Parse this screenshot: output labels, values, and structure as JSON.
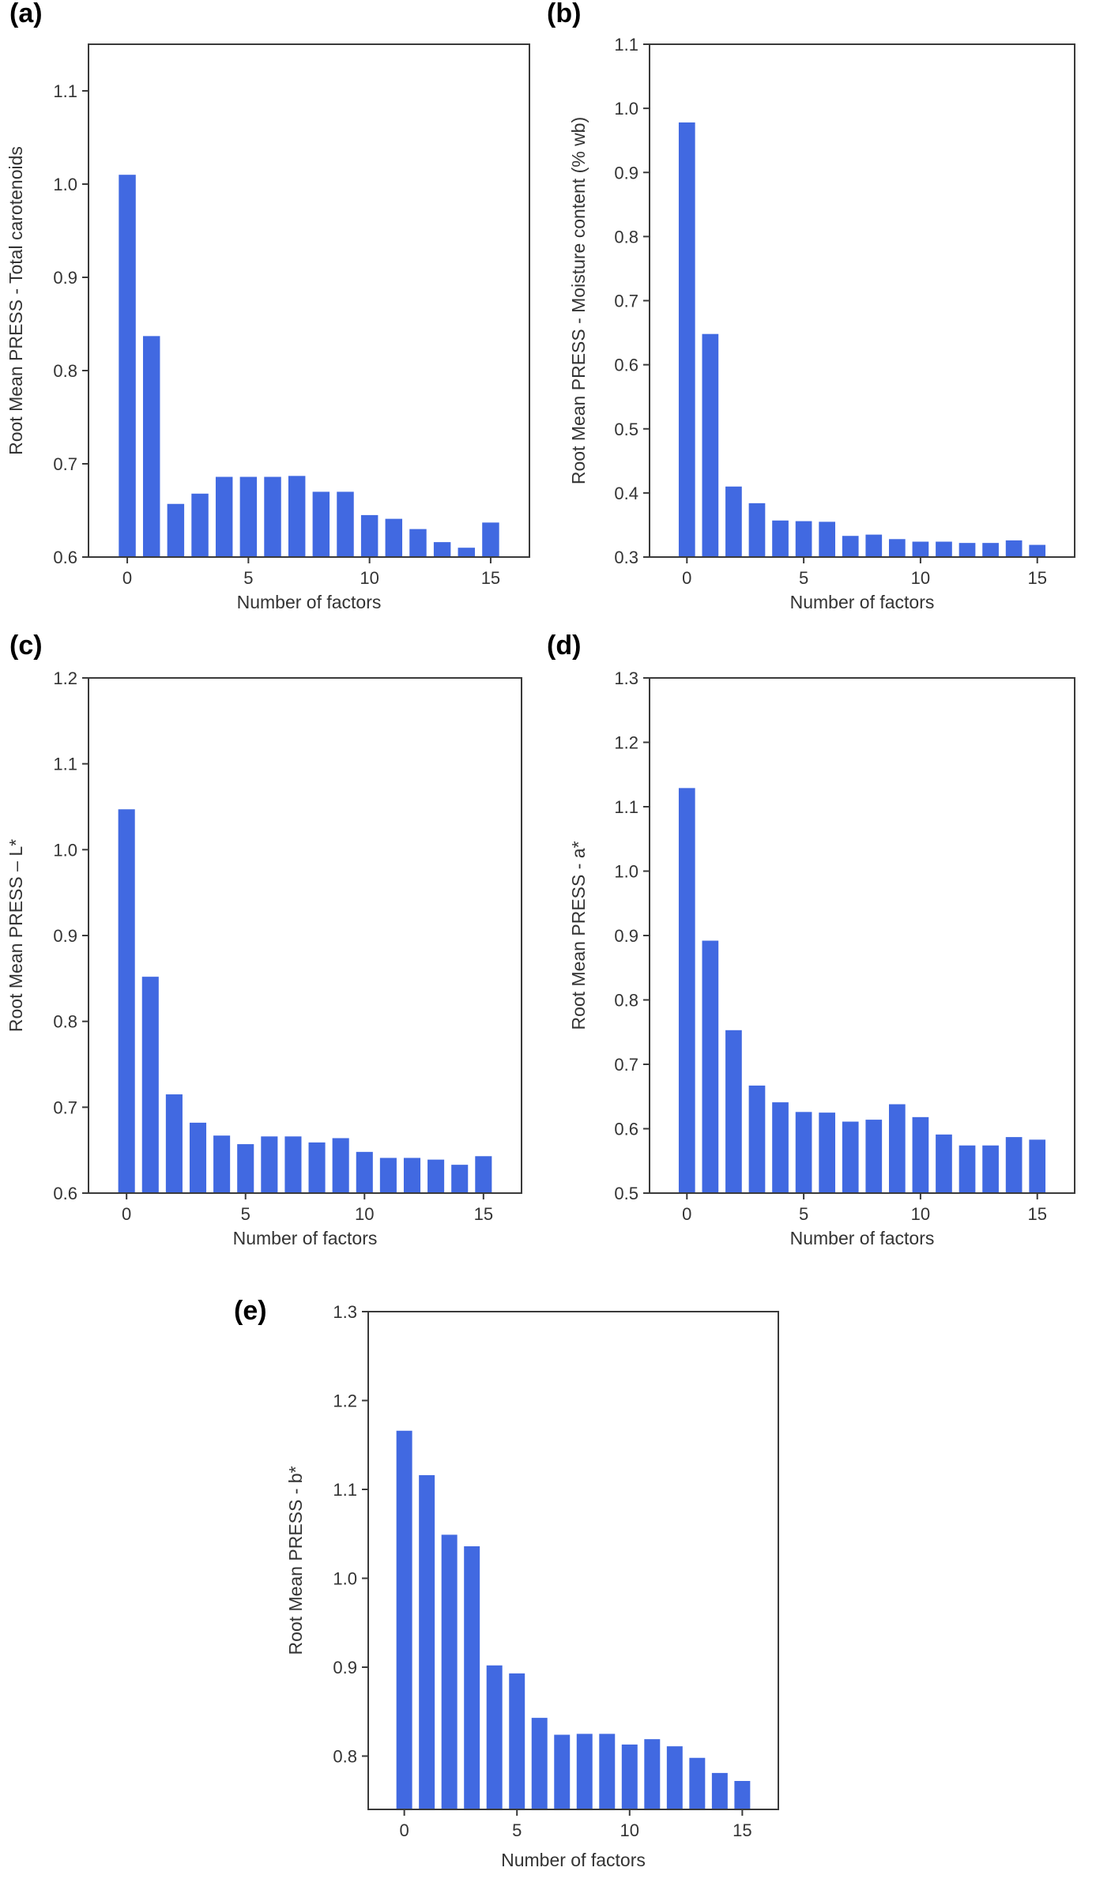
{
  "figure": {
    "bar_color": "#4169E1",
    "frame_color": "#3a3a3a",
    "text_color": "#333333"
  },
  "chart_data": [
    {
      "panel_label": "(a)",
      "type": "bar",
      "xlabel": "Number of factors",
      "ylabel": "Root Mean PRESS - Total carotenoids",
      "x": [
        0,
        1,
        2,
        3,
        4,
        5,
        6,
        7,
        8,
        9,
        10,
        11,
        12,
        13,
        14,
        15
      ],
      "values": [
        1.01,
        0.837,
        0.657,
        0.668,
        0.686,
        0.686,
        0.686,
        0.687,
        0.67,
        0.67,
        0.645,
        0.641,
        0.63,
        0.616,
        0.61,
        0.637
      ],
      "ylim": [
        0.6,
        1.15
      ],
      "yticks": [
        0.6,
        0.7,
        0.8,
        0.9,
        1.0,
        1.1
      ],
      "ytick_labels": [
        "0.6",
        "0.7",
        "0.8",
        "0.9",
        "1.0",
        "1.1"
      ],
      "xlim": [
        -1.6,
        16.6
      ],
      "xticks": [
        0,
        5,
        10,
        15
      ],
      "xtick_labels": [
        "0",
        "5",
        "10",
        "15"
      ],
      "grid": false
    },
    {
      "panel_label": "(b)",
      "type": "bar",
      "xlabel": "Number of factors",
      "ylabel": "Root Mean PRESS - Moisture content (% wb)",
      "x": [
        0,
        1,
        2,
        3,
        4,
        5,
        6,
        7,
        8,
        9,
        10,
        11,
        12,
        13,
        14,
        15
      ],
      "values": [
        0.978,
        0.648,
        0.41,
        0.384,
        0.357,
        0.356,
        0.355,
        0.333,
        0.335,
        0.328,
        0.324,
        0.324,
        0.322,
        0.322,
        0.326,
        0.319
      ],
      "ylim": [
        0.3,
        1.1
      ],
      "yticks": [
        0.3,
        0.4,
        0.5,
        0.6,
        0.7,
        0.8,
        0.9,
        1.0,
        1.1
      ],
      "ytick_labels": [
        "0.3",
        "0.4",
        "0.5",
        "0.6",
        "0.7",
        "0.8",
        "0.9",
        "1.0",
        "1.1"
      ],
      "xlim": [
        -1.6,
        16.6
      ],
      "xticks": [
        0,
        5,
        10,
        15
      ],
      "xtick_labels": [
        "0",
        "5",
        "10",
        "15"
      ],
      "grid": false
    },
    {
      "panel_label": "(c)",
      "type": "bar",
      "xlabel": "Number of factors",
      "ylabel": "Root Mean PRESS – L*",
      "x": [
        0,
        1,
        2,
        3,
        4,
        5,
        6,
        7,
        8,
        9,
        10,
        11,
        12,
        13,
        14,
        15
      ],
      "values": [
        1.047,
        0.852,
        0.715,
        0.682,
        0.667,
        0.657,
        0.666,
        0.666,
        0.659,
        0.664,
        0.648,
        0.641,
        0.641,
        0.639,
        0.633,
        0.643
      ],
      "ylim": [
        0.6,
        1.2
      ],
      "yticks": [
        0.6,
        0.7,
        0.8,
        0.9,
        1.0,
        1.1,
        1.2
      ],
      "ytick_labels": [
        "0.6",
        "0.7",
        "0.8",
        "0.9",
        "1.0",
        "1.1",
        "1.2"
      ],
      "xlim": [
        -1.6,
        16.6
      ],
      "xticks": [
        0,
        5,
        10,
        15
      ],
      "xtick_labels": [
        "0",
        "5",
        "10",
        "15"
      ],
      "grid": false
    },
    {
      "panel_label": "(d)",
      "type": "bar",
      "xlabel": "Number of factors",
      "ylabel": "Root Mean PRESS - a*",
      "x": [
        0,
        1,
        2,
        3,
        4,
        5,
        6,
        7,
        8,
        9,
        10,
        11,
        12,
        13,
        14,
        15
      ],
      "values": [
        1.129,
        0.892,
        0.753,
        0.667,
        0.641,
        0.626,
        0.625,
        0.611,
        0.614,
        0.638,
        0.618,
        0.591,
        0.574,
        0.574,
        0.587,
        0.583
      ],
      "ylim": [
        0.5,
        1.3
      ],
      "yticks": [
        0.5,
        0.6,
        0.7,
        0.8,
        0.9,
        1.0,
        1.1,
        1.2,
        1.3
      ],
      "ytick_labels": [
        "0.5",
        "0.6",
        "0.7",
        "0.8",
        "0.9",
        "1.0",
        "1.1",
        "1.2",
        "1.3"
      ],
      "xlim": [
        -1.6,
        16.6
      ],
      "xticks": [
        0,
        5,
        10,
        15
      ],
      "xtick_labels": [
        "0",
        "5",
        "10",
        "15"
      ],
      "grid": false
    },
    {
      "panel_label": "(e)",
      "type": "bar",
      "xlabel": "Number of factors",
      "ylabel": "Root Mean PRESS - b*",
      "x": [
        0,
        1,
        2,
        3,
        4,
        5,
        6,
        7,
        8,
        9,
        10,
        11,
        12,
        13,
        14,
        15
      ],
      "values": [
        1.166,
        1.116,
        1.049,
        1.036,
        0.902,
        0.893,
        0.843,
        0.824,
        0.825,
        0.825,
        0.813,
        0.819,
        0.811,
        0.798,
        0.781,
        0.772
      ],
      "ylim": [
        0.74,
        1.3
      ],
      "yticks": [
        0.8,
        0.9,
        1.0,
        1.1,
        1.2,
        1.3
      ],
      "ytick_labels": [
        "0.8",
        "0.9",
        "1.0",
        "1.1",
        "1.2",
        "1.3"
      ],
      "xlim": [
        -1.6,
        16.6
      ],
      "xticks": [
        0,
        5,
        10,
        15
      ],
      "xtick_labels": [
        "0",
        "5",
        "10",
        "15"
      ],
      "grid": false
    }
  ]
}
